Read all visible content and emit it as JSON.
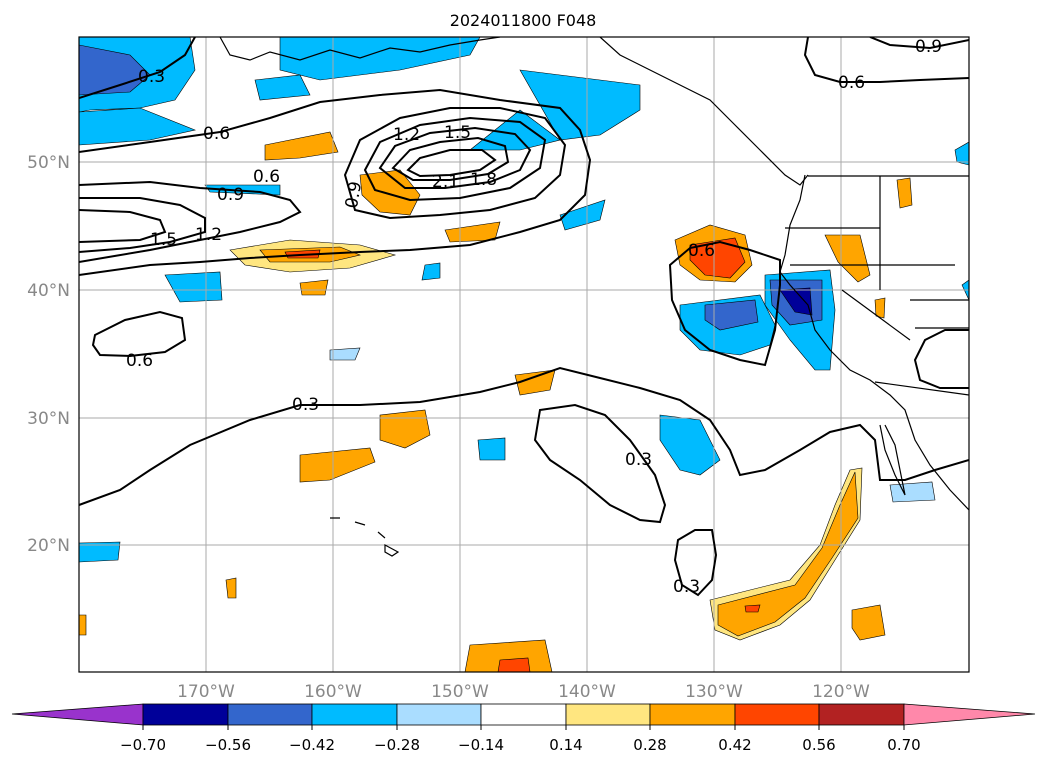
{
  "title": "2024011800 F048",
  "lat_labels": [
    "50°N",
    "40°N",
    "30°N",
    "20°N"
  ],
  "lon_labels": [
    "170°W",
    "160°W",
    "150°W",
    "140°W",
    "130°W",
    "120°W"
  ],
  "contour_labels": [
    "0.3",
    "0.6",
    "0.9",
    "1.2",
    "1.5",
    "1.8",
    "2.1"
  ],
  "colorbar": {
    "ticks": [
      "−0.70",
      "−0.56",
      "−0.42",
      "−0.28",
      "−0.14",
      "0.14",
      "0.28",
      "0.42",
      "0.56",
      "0.70"
    ],
    "colors": [
      "#9933cc",
      "#000099",
      "#3366cc",
      "#00bbff",
      "#aaddff",
      "#ffffff",
      "#ffe680",
      "#ffa500",
      "#ff4500",
      "#b22222",
      "#ff88aa"
    ]
  },
  "colors": {
    "grid": "#aaaaaa",
    "axis_label": "#888888",
    "coast": "#000000",
    "contour": "#000000"
  }
}
